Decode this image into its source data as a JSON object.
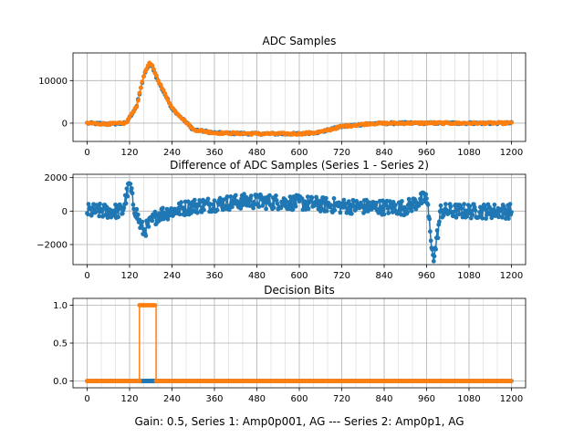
{
  "figure": {
    "xlabel": "Gain: 0.5, Series 1: Amp0p001, AG --- Series 2: Amp0p1, AG"
  },
  "colors": {
    "series1": "#1f77b4",
    "series2": "#ff7f0e"
  },
  "chart_data": [
    {
      "type": "line",
      "title": "ADC Samples",
      "xlim": [
        -40,
        1240
      ],
      "ylim": [
        -4300,
        16500
      ],
      "xticks": [
        0,
        120,
        240,
        360,
        480,
        600,
        720,
        840,
        960,
        1080,
        1200
      ],
      "xtick_labels": [
        "0",
        "120",
        "240",
        "360",
        "480",
        "600",
        "720",
        "840",
        "960",
        "1080",
        "1200"
      ],
      "yticks": [
        0,
        10000
      ],
      "ytick_labels": [
        "0",
        "10000"
      ],
      "grid": true,
      "series": [
        {
          "color": "#1f77b4",
          "marker": "o",
          "x": [
            0,
            60,
            110,
            140,
            160,
            175,
            185,
            200,
            240,
            300,
            360,
            480,
            600,
            660,
            720,
            800,
            900,
            1000,
            1100,
            1200
          ],
          "y": [
            0,
            -200,
            0,
            4000,
            11000,
            13800,
            13200,
            10000,
            3500,
            -1500,
            -2300,
            -2500,
            -2500,
            -2100,
            -800,
            -100,
            0,
            0,
            0,
            0
          ]
        },
        {
          "color": "#ff7f0e",
          "marker": "o",
          "x": [
            0,
            60,
            110,
            140,
            160,
            175,
            185,
            200,
            240,
            300,
            360,
            480,
            600,
            660,
            720,
            800,
            900,
            1000,
            1100,
            1200
          ],
          "y": [
            0,
            -200,
            0,
            4000,
            11200,
            14000,
            13400,
            10200,
            3600,
            -1500,
            -2300,
            -2500,
            -2500,
            -2100,
            -800,
            -100,
            0,
            0,
            0,
            0
          ]
        }
      ]
    },
    {
      "type": "line",
      "title": "Difference of ADC Samples (Series 1 - Series 2)",
      "xlim": [
        -40,
        1240
      ],
      "ylim": [
        -3200,
        2200
      ],
      "xticks": [
        0,
        120,
        240,
        360,
        480,
        600,
        720,
        840,
        960,
        1080,
        1200
      ],
      "xtick_labels": [
        "0",
        "120",
        "240",
        "360",
        "480",
        "600",
        "720",
        "840",
        "960",
        "1080",
        "1200"
      ],
      "yticks": [
        -2000,
        0,
        2000
      ],
      "ytick_labels": [
        "−2000",
        "0",
        "2000"
      ],
      "grid": true,
      "series": [
        {
          "color": "#1f77b4",
          "marker": "o",
          "noise_amplitude": 450,
          "envelope": {
            "x": [
              0,
              100,
              120,
              130,
              150,
              160,
              200,
              300,
              450,
              600,
              720,
              900,
              960,
              980,
              1000,
              1100,
              1200
            ],
            "y": [
              0,
              0,
              1600,
              500,
              -800,
              -1200,
              -200,
              300,
              600,
              500,
              300,
              200,
              800,
              -3000,
              0,
              0,
              0
            ]
          }
        }
      ]
    },
    {
      "type": "line",
      "title": "Decision Bits",
      "xlim": [
        -40,
        1240
      ],
      "ylim": [
        -0.09,
        1.09
      ],
      "xticks": [
        0,
        120,
        240,
        360,
        480,
        600,
        720,
        840,
        960,
        1080,
        1200
      ],
      "xtick_labels": [
        "0",
        "120",
        "240",
        "360",
        "480",
        "600",
        "720",
        "840",
        "960",
        "1080",
        "1200"
      ],
      "yticks": [
        0.0,
        0.5,
        1.0
      ],
      "ytick_labels": [
        "0.0",
        "0.5",
        "1.0"
      ],
      "grid": true,
      "series": [
        {
          "color": "#1f77b4",
          "marker": "o",
          "segments": [
            {
              "x0": 0,
              "x1": 1200,
              "y": 0
            },
            {
              "x0": 160,
              "x1": 195,
              "y": 0
            }
          ]
        },
        {
          "color": "#ff7f0e",
          "marker": "o",
          "segments": [
            {
              "x0": 0,
              "x1": 148,
              "y": 0
            },
            {
              "x0": 148,
              "x1": 195,
              "y": 1
            },
            {
              "x0": 195,
              "x1": 1200,
              "y": 0
            }
          ]
        }
      ]
    }
  ]
}
